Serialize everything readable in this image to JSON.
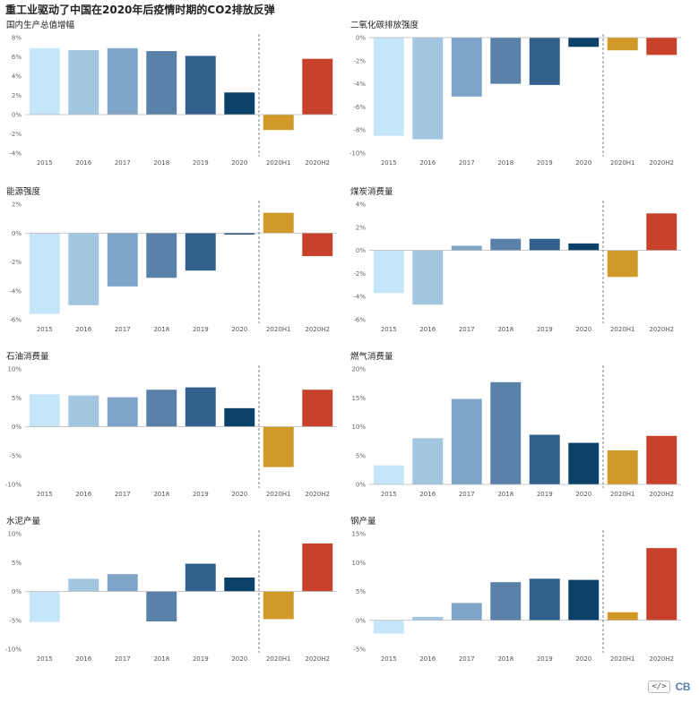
{
  "title": "重工业驱动了中国在2020年后疫情时期的CO2排放反弹",
  "colors": [
    "#c5e5f8",
    "#a2c6e0",
    "#7fa5c8",
    "#5a81a8",
    "#30608b",
    "#0b4068",
    "#d19a28",
    "#c8412a"
  ],
  "chart_data": [
    {
      "type": "bar",
      "title": "国内生产总值增幅",
      "categories": [
        "2015",
        "2016",
        "2017",
        "2018",
        "2019",
        "2020",
        "2020H1",
        "2020H2"
      ],
      "values": [
        6.9,
        6.7,
        6.9,
        6.6,
        6.1,
        2.3,
        -1.6,
        5.8
      ],
      "ylim": [
        -4,
        8
      ],
      "yticks": [
        -4,
        -2,
        0,
        2,
        4,
        6,
        8
      ],
      "tick_labels": [
        "-4%",
        "-2%",
        "0%",
        "2%",
        "4%",
        "6%",
        "8%"
      ]
    },
    {
      "type": "bar",
      "title": "二氧化碳排放强度",
      "categories": [
        "2015",
        "2016",
        "2017",
        "2018",
        "2019",
        "2020",
        "2020H1",
        "2020H2"
      ],
      "values": [
        -8.5,
        -8.8,
        -5.1,
        -4.0,
        -4.1,
        -0.8,
        -1.1,
        -1.5
      ],
      "ylim": [
        -10,
        0
      ],
      "yticks": [
        -10,
        -8,
        -6,
        -4,
        -2,
        0
      ],
      "tick_labels": [
        "-10%",
        "-8%",
        "-6%",
        "-4%",
        "-2%",
        "0%"
      ]
    },
    {
      "type": "bar",
      "title": "能源强度",
      "categories": [
        "2015",
        "2016",
        "2017",
        "2018",
        "2019",
        "2020",
        "2020H1",
        "2020H2"
      ],
      "values": [
        -5.6,
        -5.0,
        -3.7,
        -3.1,
        -2.6,
        -0.1,
        1.4,
        -1.6
      ],
      "ylim": [
        -6,
        2
      ],
      "yticks": [
        -6,
        -4,
        -2,
        0,
        2
      ],
      "tick_labels": [
        "-6%",
        "-4%",
        "-2%",
        "0%",
        "2%"
      ]
    },
    {
      "type": "bar",
      "title": "煤炭消费量",
      "categories": [
        "2015",
        "2016",
        "2017",
        "2018",
        "2019",
        "2020",
        "2020H1",
        "2020H2"
      ],
      "values": [
        -3.7,
        -4.7,
        0.4,
        1.0,
        1.0,
        0.6,
        -2.3,
        3.2
      ],
      "ylim": [
        -6,
        4
      ],
      "yticks": [
        -6,
        -4,
        -2,
        0,
        2,
        4
      ],
      "tick_labels": [
        "-6%",
        "-4%",
        "-2%",
        "0%",
        "2%",
        "4%"
      ]
    },
    {
      "type": "bar",
      "title": "石油消费量",
      "categories": [
        "2015",
        "2016",
        "2017",
        "2018",
        "2019",
        "2020",
        "2020H1",
        "2020H2"
      ],
      "values": [
        5.6,
        5.4,
        5.1,
        6.4,
        6.8,
        3.2,
        -7.0,
        6.4
      ],
      "ylim": [
        -10,
        10
      ],
      "yticks": [
        -10,
        -5,
        0,
        5,
        10
      ],
      "tick_labels": [
        "-10%",
        "-5%",
        "0%",
        "5%",
        "10%"
      ]
    },
    {
      "type": "bar",
      "title": "燃气消费量",
      "categories": [
        "2015",
        "2016",
        "2017",
        "2018",
        "2019",
        "2020",
        "2020H1",
        "2020H2"
      ],
      "values": [
        3.3,
        8.0,
        14.8,
        17.7,
        8.6,
        7.2,
        5.9,
        8.4
      ],
      "ylim": [
        0,
        20
      ],
      "yticks": [
        0,
        5,
        10,
        15,
        20
      ],
      "tick_labels": [
        "0%",
        "5%",
        "10%",
        "15%",
        "20%"
      ]
    },
    {
      "type": "bar",
      "title": "水泥产量",
      "categories": [
        "2015",
        "2016",
        "2017",
        "2018",
        "2019",
        "2020",
        "2020H1",
        "2020H2"
      ],
      "values": [
        -5.3,
        2.2,
        3.0,
        -5.2,
        4.8,
        2.4,
        -4.8,
        8.3
      ],
      "ylim": [
        -10,
        10
      ],
      "yticks": [
        -10,
        -5,
        0,
        5,
        10
      ],
      "tick_labels": [
        "-10%",
        "-5%",
        "0%",
        "5%",
        "10%"
      ]
    },
    {
      "type": "bar",
      "title": "钢产量",
      "categories": [
        "2015",
        "2016",
        "2017",
        "2018",
        "2019",
        "2020",
        "2020H1",
        "2020H2"
      ],
      "values": [
        -2.3,
        0.6,
        3.0,
        6.6,
        7.2,
        7.0,
        1.4,
        12.5
      ],
      "ylim": [
        -5,
        15
      ],
      "yticks": [
        -5,
        0,
        5,
        10,
        15
      ],
      "tick_labels": [
        "-5%",
        "0%",
        "5%",
        "10%",
        "15%"
      ]
    }
  ],
  "footer": {
    "code_icon": "</>",
    "logo": "CB"
  }
}
